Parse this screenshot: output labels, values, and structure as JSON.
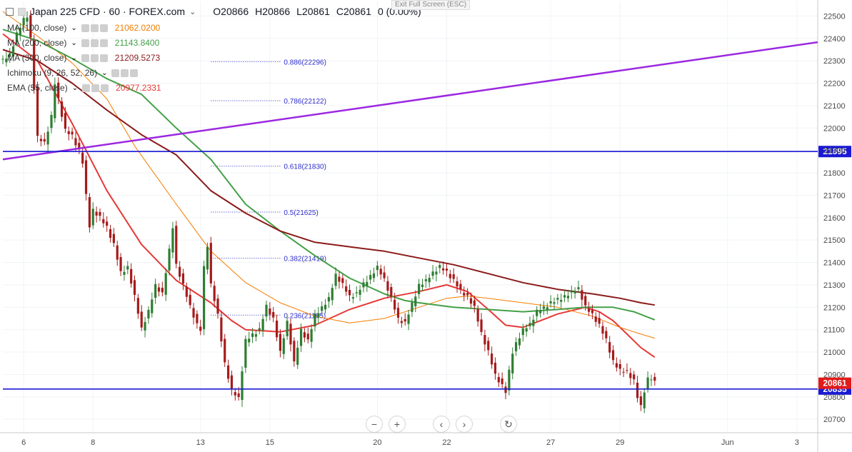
{
  "header": {
    "symbol": "Japan 225 CFD · 60 · FOREX.com",
    "open": "O20866",
    "high": "H20866",
    "low": "L20861",
    "close": "C20861",
    "change": "0 (0.00%)",
    "exit_full_screen": "Exit Full Screen (ESC)"
  },
  "indicators": [
    {
      "name": "MA (100, close)",
      "value": "21062.0200",
      "color": "#f57c00"
    },
    {
      "name": "MA (200, close)",
      "value": "21143.8400",
      "color": "#43a047"
    },
    {
      "name": "MA (300, close)",
      "value": "21209.5273",
      "color": "#8b1a1a"
    },
    {
      "name": "Ichimoku (9, 26, 52, 26)",
      "value": "",
      "color": "#888888"
    },
    {
      "name": "EMA (55, close)",
      "value": "20977.2331",
      "color": "#e53935"
    }
  ],
  "nav_buttons": {
    "zoom_out": "−",
    "zoom_in": "+",
    "prev": "‹",
    "next": "›",
    "reset": "↻"
  },
  "chart_data": {
    "type": "line",
    "symbol": "Japan 225 CFD",
    "timeframe": "60",
    "ylim": [
      20640,
      22565
    ],
    "yticks": [
      22500,
      22400,
      22300,
      22200,
      22100,
      22000,
      21900,
      21800,
      21700,
      21600,
      21500,
      21400,
      21300,
      21200,
      21100,
      21000,
      20900,
      20800,
      20700
    ],
    "x_tick_labels": [
      "6",
      "8",
      "13",
      "15",
      "20",
      "22",
      "27",
      "29",
      "Jun",
      "3"
    ],
    "x_tick_index": [
      6,
      26,
      57,
      77,
      108,
      128,
      158,
      178,
      209,
      229
    ],
    "last_index": 188,
    "x_span": [
      0,
      235
    ],
    "grid": true,
    "price": {
      "name": "Japan 225 CFD",
      "up_color": "#2e7d32",
      "down_color": "#a51b1b",
      "points": [
        [
          0,
          22300
        ],
        [
          2,
          22330
        ],
        [
          4,
          22420
        ],
        [
          6,
          22480
        ],
        [
          7,
          22500
        ],
        [
          8,
          22400
        ],
        [
          9,
          22180
        ],
        [
          10,
          21960
        ],
        [
          12,
          21930
        ],
        [
          14,
          22050
        ],
        [
          15,
          22200
        ],
        [
          16,
          22130
        ],
        [
          18,
          21990
        ],
        [
          20,
          21960
        ],
        [
          22,
          21900
        ],
        [
          23,
          21850
        ],
        [
          24,
          21700
        ],
        [
          25,
          21560
        ],
        [
          26,
          21630
        ],
        [
          28,
          21600
        ],
        [
          30,
          21560
        ],
        [
          32,
          21480
        ],
        [
          34,
          21350
        ],
        [
          36,
          21380
        ],
        [
          38,
          21250
        ],
        [
          40,
          21100
        ],
        [
          42,
          21180
        ],
        [
          44,
          21300
        ],
        [
          46,
          21260
        ],
        [
          48,
          21450
        ],
        [
          49,
          21560
        ],
        [
          50,
          21390
        ],
        [
          52,
          21300
        ],
        [
          54,
          21200
        ],
        [
          56,
          21120
        ],
        [
          57,
          21100
        ],
        [
          58,
          21380
        ],
        [
          59,
          21480
        ],
        [
          60,
          21300
        ],
        [
          62,
          21160
        ],
        [
          64,
          20950
        ],
        [
          66,
          20830
        ],
        [
          68,
          20790
        ],
        [
          70,
          21050
        ],
        [
          72,
          21080
        ],
        [
          74,
          21100
        ],
        [
          76,
          21200
        ],
        [
          78,
          21150
        ],
        [
          80,
          21000
        ],
        [
          82,
          21130
        ],
        [
          84,
          20950
        ],
        [
          86,
          21100
        ],
        [
          88,
          21050
        ],
        [
          90,
          21160
        ],
        [
          92,
          21200
        ],
        [
          94,
          21240
        ],
        [
          96,
          21340
        ],
        [
          98,
          21300
        ],
        [
          100,
          21250
        ],
        [
          102,
          21260
        ],
        [
          104,
          21300
        ],
        [
          106,
          21340
        ],
        [
          108,
          21380
        ],
        [
          110,
          21320
        ],
        [
          112,
          21240
        ],
        [
          114,
          21150
        ],
        [
          116,
          21130
        ],
        [
          118,
          21210
        ],
        [
          120,
          21300
        ],
        [
          122,
          21320
        ],
        [
          124,
          21350
        ],
        [
          126,
          21380
        ],
        [
          128,
          21360
        ],
        [
          130,
          21320
        ],
        [
          132,
          21270
        ],
        [
          134,
          21250
        ],
        [
          136,
          21200
        ],
        [
          138,
          21080
        ],
        [
          140,
          21000
        ],
        [
          142,
          20900
        ],
        [
          144,
          20850
        ],
        [
          145,
          20820
        ],
        [
          147,
          21000
        ],
        [
          148,
          21040
        ],
        [
          150,
          21100
        ],
        [
          152,
          21120
        ],
        [
          154,
          21180
        ],
        [
          156,
          21200
        ],
        [
          158,
          21220
        ],
        [
          160,
          21230
        ],
        [
          162,
          21250
        ],
        [
          164,
          21270
        ],
        [
          166,
          21280
        ],
        [
          168,
          21200
        ],
        [
          170,
          21170
        ],
        [
          172,
          21120
        ],
        [
          174,
          21050
        ],
        [
          176,
          20960
        ],
        [
          178,
          20920
        ],
        [
          180,
          20910
        ],
        [
          182,
          20870
        ],
        [
          183,
          20800
        ],
        [
          184,
          20760
        ],
        [
          185,
          20830
        ],
        [
          186,
          20880
        ],
        [
          187,
          20880
        ],
        [
          188,
          20861
        ]
      ]
    },
    "series": [
      {
        "name": "EMA (55, close)",
        "color": "#e53935",
        "width": 2,
        "points": [
          [
            0,
            22420
          ],
          [
            10,
            22300
          ],
          [
            20,
            22020
          ],
          [
            30,
            21720
          ],
          [
            40,
            21480
          ],
          [
            50,
            21320
          ],
          [
            60,
            21220
          ],
          [
            66,
            21140
          ],
          [
            70,
            21100
          ],
          [
            80,
            21090
          ],
          [
            90,
            21120
          ],
          [
            100,
            21190
          ],
          [
            110,
            21240
          ],
          [
            120,
            21270
          ],
          [
            128,
            21300
          ],
          [
            134,
            21270
          ],
          [
            140,
            21190
          ],
          [
            145,
            21120
          ],
          [
            150,
            21110
          ],
          [
            160,
            21170
          ],
          [
            168,
            21200
          ],
          [
            172,
            21180
          ],
          [
            176,
            21140
          ],
          [
            180,
            21080
          ],
          [
            184,
            21020
          ],
          [
            188,
            20977
          ]
        ]
      },
      {
        "name": "MA (100, close)",
        "color": "#f57c00",
        "width": 1,
        "points": [
          [
            0,
            22520
          ],
          [
            10,
            22410
          ],
          [
            20,
            22290
          ],
          [
            30,
            22130
          ],
          [
            38,
            21920
          ],
          [
            44,
            21790
          ],
          [
            50,
            21660
          ],
          [
            60,
            21450
          ],
          [
            70,
            21310
          ],
          [
            80,
            21220
          ],
          [
            90,
            21160
          ],
          [
            100,
            21130
          ],
          [
            110,
            21150
          ],
          [
            120,
            21200
          ],
          [
            128,
            21240
          ],
          [
            134,
            21250
          ],
          [
            140,
            21240
          ],
          [
            150,
            21220
          ],
          [
            160,
            21200
          ],
          [
            170,
            21160
          ],
          [
            178,
            21110
          ],
          [
            184,
            21080
          ],
          [
            188,
            21062
          ]
        ]
      },
      {
        "name": "MA (200, close)",
        "color": "#43a047",
        "width": 2,
        "points": [
          [
            0,
            22440
          ],
          [
            10,
            22390
          ],
          [
            20,
            22310
          ],
          [
            30,
            22220
          ],
          [
            40,
            22150
          ],
          [
            50,
            22000
          ],
          [
            60,
            21860
          ],
          [
            70,
            21660
          ],
          [
            80,
            21540
          ],
          [
            90,
            21430
          ],
          [
            100,
            21330
          ],
          [
            110,
            21260
          ],
          [
            116,
            21230
          ],
          [
            120,
            21220
          ],
          [
            130,
            21200
          ],
          [
            140,
            21190
          ],
          [
            150,
            21180
          ],
          [
            160,
            21190
          ],
          [
            168,
            21200
          ],
          [
            176,
            21200
          ],
          [
            182,
            21180
          ],
          [
            188,
            21144
          ]
        ]
      },
      {
        "name": "MA (300, close)",
        "color": "#8b1a1a",
        "width": 2,
        "points": [
          [
            0,
            22350
          ],
          [
            10,
            22300
          ],
          [
            20,
            22200
          ],
          [
            30,
            22080
          ],
          [
            40,
            21970
          ],
          [
            50,
            21880
          ],
          [
            60,
            21720
          ],
          [
            70,
            21620
          ],
          [
            80,
            21540
          ],
          [
            90,
            21490
          ],
          [
            100,
            21470
          ],
          [
            110,
            21450
          ],
          [
            120,
            21420
          ],
          [
            130,
            21390
          ],
          [
            140,
            21350
          ],
          [
            150,
            21310
          ],
          [
            160,
            21280
          ],
          [
            170,
            21260
          ],
          [
            178,
            21240
          ],
          [
            184,
            21220
          ],
          [
            188,
            21210
          ]
        ]
      }
    ],
    "trendline": {
      "color": "#9c27e0",
      "points": [
        [
          0,
          21860
        ],
        [
          235,
          22383
        ]
      ]
    },
    "hlines": [
      {
        "value": 21895,
        "label": "21895",
        "color": "#1a1ad4"
      },
      {
        "value": 20835,
        "label": "20835",
        "color": "#1a1ad4"
      }
    ],
    "fib_levels": [
      {
        "label": "0.886(22296)",
        "value": 22296
      },
      {
        "label": "0.786(22122)",
        "value": 22122
      },
      {
        "label": "0.618(21830)",
        "value": 21830
      },
      {
        "label": "0.5(21625)",
        "value": 21625
      },
      {
        "label": "0.382(21419)",
        "value": 21419
      },
      {
        "label": "0.236(21165)",
        "value": 21165
      }
    ],
    "fib_range": [
      60,
      80
    ],
    "fib_color": "#2d2dc9",
    "price_tag": {
      "value": 20861,
      "label": "20861",
      "color": "#e11a1a"
    }
  }
}
